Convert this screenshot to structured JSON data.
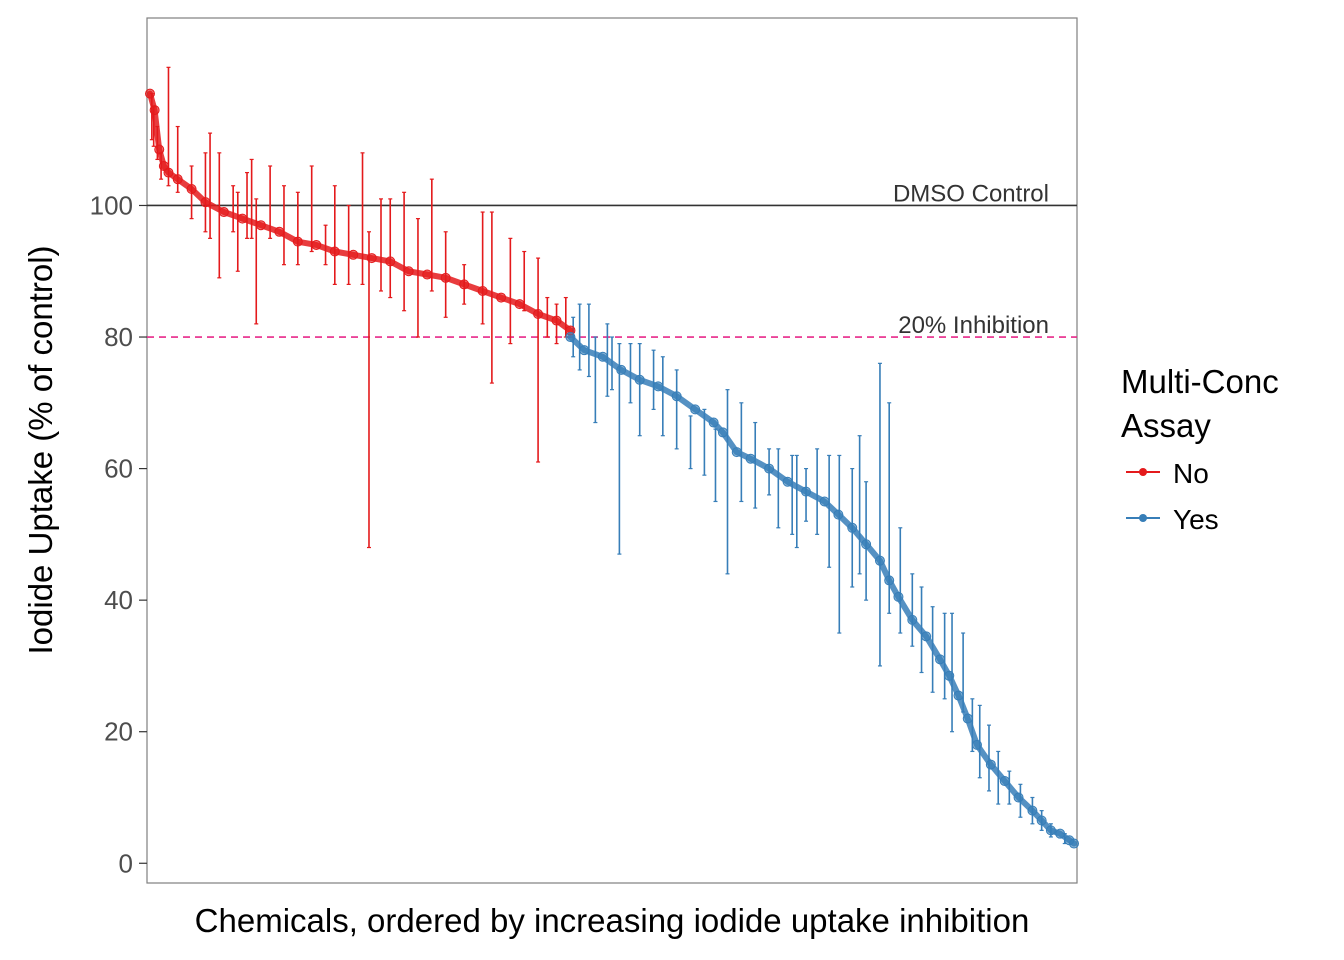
{
  "colors": {
    "no": "#E41A1C",
    "yes": "#377EB8",
    "dmso_line": "#333333",
    "inhibition_line": "#E7298A",
    "panel_border": "#7F7F7F",
    "axis_text": "#4D4D4D",
    "title_text": "#000000"
  },
  "chart_data": {
    "type": "scatter",
    "xlabel": "Chemicals, ordered by increasing iodide uptake inhibition",
    "ylabel": "Iodide Uptake (% of control)",
    "ylim": [
      -3,
      128.5
    ],
    "xlim": [
      0,
      1
    ],
    "yticks": [
      0,
      20,
      40,
      60,
      80,
      100
    ],
    "ytick_labels": [
      "0",
      "20",
      "40",
      "60",
      "80",
      "100"
    ],
    "x_axis": "chemical rank (unlabeled, ordered by decreasing uptake)",
    "grid": false,
    "legend": {
      "position": "right",
      "title": [
        "Multi-Conc",
        "Assay"
      ],
      "entries": [
        "No",
        "Yes"
      ]
    },
    "reference_lines": [
      {
        "y": 100,
        "label": "DMSO Control",
        "style": "solid"
      },
      {
        "y": 80,
        "label": "20% Inhibition",
        "style": "dashed"
      }
    ],
    "series": [
      {
        "name": "No",
        "points": [
          [
            0.0,
            117.0
          ],
          [
            0.005,
            114.5
          ],
          [
            0.01,
            108.5
          ],
          [
            0.015,
            106.0
          ],
          [
            0.02,
            105.0
          ],
          [
            0.03,
            104.0
          ],
          [
            0.045,
            102.5
          ],
          [
            0.06,
            100.5
          ],
          [
            0.08,
            99.0
          ],
          [
            0.1,
            98.0
          ],
          [
            0.12,
            97.0
          ],
          [
            0.14,
            96.0
          ],
          [
            0.16,
            94.5
          ],
          [
            0.18,
            94.0
          ],
          [
            0.2,
            93.0
          ],
          [
            0.22,
            92.5
          ],
          [
            0.24,
            92.0
          ],
          [
            0.26,
            91.5
          ],
          [
            0.28,
            90.0
          ],
          [
            0.3,
            89.5
          ],
          [
            0.32,
            89.0
          ],
          [
            0.34,
            88.0
          ],
          [
            0.36,
            87.0
          ],
          [
            0.38,
            86.0
          ],
          [
            0.4,
            85.0
          ],
          [
            0.42,
            83.5
          ],
          [
            0.44,
            82.5
          ],
          [
            0.455,
            81.0
          ]
        ],
        "error_bars": [
          [
            0.002,
            110,
            117
          ],
          [
            0.004,
            109,
            115
          ],
          [
            0.008,
            107,
            112
          ],
          [
            0.012,
            104,
            108
          ],
          [
            0.02,
            103,
            121
          ],
          [
            0.03,
            102,
            112
          ],
          [
            0.045,
            98,
            106
          ],
          [
            0.06,
            96,
            108
          ],
          [
            0.065,
            95,
            111
          ],
          [
            0.075,
            89,
            108
          ],
          [
            0.09,
            96,
            103
          ],
          [
            0.095,
            90,
            102
          ],
          [
            0.105,
            95,
            105
          ],
          [
            0.11,
            95,
            107
          ],
          [
            0.115,
            82,
            101
          ],
          [
            0.13,
            95,
            106
          ],
          [
            0.145,
            91,
            103
          ],
          [
            0.16,
            91,
            102
          ],
          [
            0.175,
            93,
            106
          ],
          [
            0.19,
            91,
            97
          ],
          [
            0.2,
            88,
            103
          ],
          [
            0.215,
            88,
            100
          ],
          [
            0.23,
            88,
            108
          ],
          [
            0.237,
            48,
            96
          ],
          [
            0.25,
            87,
            101
          ],
          [
            0.26,
            86,
            101
          ],
          [
            0.275,
            84,
            102
          ],
          [
            0.29,
            80,
            98
          ],
          [
            0.305,
            87,
            104
          ],
          [
            0.32,
            83,
            96
          ],
          [
            0.34,
            85,
            91
          ],
          [
            0.36,
            82,
            99
          ],
          [
            0.37,
            73,
            99
          ],
          [
            0.39,
            79,
            95
          ],
          [
            0.405,
            84,
            93
          ],
          [
            0.42,
            61,
            92
          ],
          [
            0.43,
            80,
            86
          ],
          [
            0.44,
            79,
            85
          ],
          [
            0.45,
            80,
            86
          ]
        ]
      },
      {
        "name": "Yes",
        "points": [
          [
            0.455,
            80.0
          ],
          [
            0.47,
            78.0
          ],
          [
            0.49,
            77.0
          ],
          [
            0.51,
            75.0
          ],
          [
            0.53,
            73.5
          ],
          [
            0.55,
            72.5
          ],
          [
            0.57,
            71.0
          ],
          [
            0.59,
            69.0
          ],
          [
            0.61,
            67.0
          ],
          [
            0.62,
            65.5
          ],
          [
            0.635,
            62.5
          ],
          [
            0.65,
            61.5
          ],
          [
            0.67,
            60.0
          ],
          [
            0.69,
            58.0
          ],
          [
            0.71,
            56.5
          ],
          [
            0.73,
            55.0
          ],
          [
            0.745,
            53.0
          ],
          [
            0.76,
            51.0
          ],
          [
            0.775,
            48.5
          ],
          [
            0.79,
            46.0
          ],
          [
            0.8,
            43.0
          ],
          [
            0.81,
            40.5
          ],
          [
            0.825,
            37.0
          ],
          [
            0.84,
            34.5
          ],
          [
            0.855,
            31.0
          ],
          [
            0.865,
            28.5
          ],
          [
            0.875,
            25.5
          ],
          [
            0.885,
            22.0
          ],
          [
            0.895,
            18.0
          ],
          [
            0.91,
            15.0
          ],
          [
            0.925,
            12.5
          ],
          [
            0.94,
            10.0
          ],
          [
            0.955,
            8.0
          ],
          [
            0.965,
            6.5
          ],
          [
            0.975,
            5.0
          ],
          [
            0.985,
            4.5
          ],
          [
            0.995,
            3.5
          ],
          [
            1.0,
            3.0
          ]
        ],
        "error_bars": [
          [
            0.458,
            77,
            83
          ],
          [
            0.465,
            75,
            85
          ],
          [
            0.475,
            74,
            85
          ],
          [
            0.482,
            67,
            80
          ],
          [
            0.495,
            71,
            82
          ],
          [
            0.5,
            72,
            80
          ],
          [
            0.508,
            47,
            79
          ],
          [
            0.52,
            70,
            79
          ],
          [
            0.53,
            65,
            79
          ],
          [
            0.545,
            69,
            78
          ],
          [
            0.555,
            65,
            77
          ],
          [
            0.57,
            63,
            75
          ],
          [
            0.585,
            60,
            68
          ],
          [
            0.6,
            59,
            69
          ],
          [
            0.612,
            55,
            66
          ],
          [
            0.625,
            44,
            72
          ],
          [
            0.64,
            55,
            70
          ],
          [
            0.655,
            54,
            67
          ],
          [
            0.67,
            56,
            63
          ],
          [
            0.68,
            51,
            63
          ],
          [
            0.695,
            50,
            62
          ],
          [
            0.7,
            48,
            62
          ],
          [
            0.71,
            52,
            60
          ],
          [
            0.722,
            50,
            63
          ],
          [
            0.735,
            45,
            62
          ],
          [
            0.746,
            35,
            62
          ],
          [
            0.76,
            42,
            60
          ],
          [
            0.768,
            44,
            65
          ],
          [
            0.775,
            40,
            58
          ],
          [
            0.79,
            30,
            76
          ],
          [
            0.8,
            38,
            70
          ],
          [
            0.812,
            35,
            51
          ],
          [
            0.825,
            33,
            44
          ],
          [
            0.835,
            29,
            42
          ],
          [
            0.847,
            26,
            39
          ],
          [
            0.86,
            25,
            38
          ],
          [
            0.868,
            20,
            38
          ],
          [
            0.88,
            23,
            35
          ],
          [
            0.89,
            17,
            25
          ],
          [
            0.898,
            13,
            24
          ],
          [
            0.908,
            11,
            21
          ],
          [
            0.918,
            9,
            17
          ],
          [
            0.93,
            9,
            14
          ],
          [
            0.942,
            7,
            12
          ],
          [
            0.955,
            6,
            10
          ],
          [
            0.965,
            5,
            8
          ],
          [
            0.975,
            4,
            6
          ],
          [
            0.99,
            3,
            4.5
          ]
        ]
      }
    ]
  }
}
